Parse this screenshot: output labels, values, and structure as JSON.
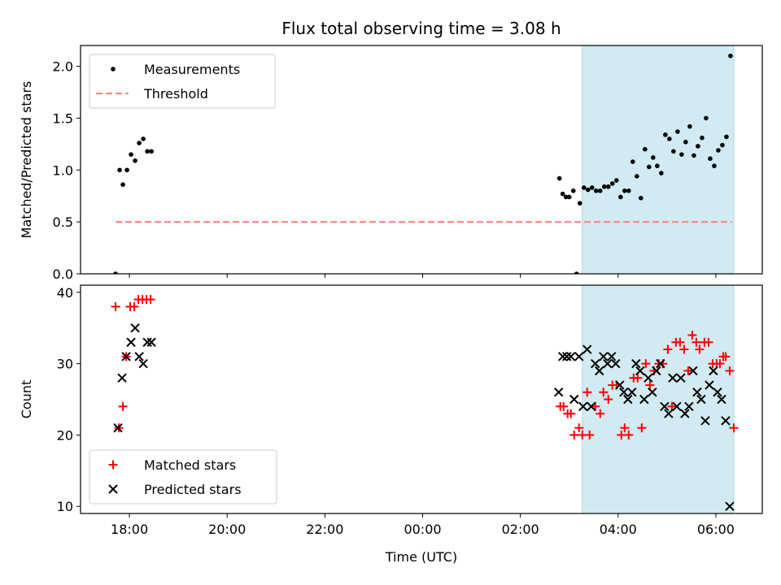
{
  "title": "Flux total observing time = 3.08 h",
  "colors": {
    "shade": "#add8e6",
    "measurement": "#000000",
    "threshold": "#ff7f7f",
    "matched": "#ff0000",
    "predicted": "#000000"
  },
  "chart_data": [
    {
      "type": "scatter",
      "panel": "top",
      "xlabel": "",
      "ylabel": "Matched/Predicted stars",
      "ylim": [
        0,
        2.2
      ],
      "yticks": [
        "0.0",
        "0.5",
        "1.0",
        "1.5",
        "2.0"
      ],
      "xlim_hours": [
        17.0,
        30.95
      ],
      "xtick_labels": [],
      "legend": {
        "placement": "upper-left",
        "entries": [
          {
            "label": "Measurements",
            "marker": "dot"
          },
          {
            "label": "Threshold",
            "marker": "dashed-line"
          }
        ]
      },
      "shaded_span": [
        "03:16",
        "06:22"
      ],
      "threshold": {
        "y": 0.5,
        "from": "17:43",
        "to": "06:20"
      },
      "series": [
        {
          "name": "Measurements",
          "marker": "dot",
          "points": [
            [
              "17:43",
              0.0
            ],
            [
              "17:48",
              1.0
            ],
            [
              "17:52",
              0.86
            ],
            [
              "17:57",
              1.0
            ],
            [
              "18:02",
              1.15
            ],
            [
              "18:07",
              1.09
            ],
            [
              "18:12",
              1.26
            ],
            [
              "18:17",
              1.3
            ],
            [
              "18:22",
              1.18
            ],
            [
              "18:27",
              1.18
            ],
            [
              "02:48",
              0.92
            ],
            [
              "02:52",
              0.77
            ],
            [
              "02:56",
              0.74
            ],
            [
              "03:00",
              0.74
            ],
            [
              "03:05",
              0.8
            ],
            [
              "03:09",
              0.0
            ],
            [
              "03:13",
              0.68
            ],
            [
              "03:18",
              0.83
            ],
            [
              "03:23",
              0.81
            ],
            [
              "03:28",
              0.83
            ],
            [
              "03:33",
              0.8
            ],
            [
              "03:38",
              0.8
            ],
            [
              "03:43",
              0.84
            ],
            [
              "03:48",
              0.84
            ],
            [
              "03:53",
              0.87
            ],
            [
              "03:58",
              0.9
            ],
            [
              "04:03",
              0.74
            ],
            [
              "04:08",
              0.8
            ],
            [
              "04:13",
              0.8
            ],
            [
              "04:18",
              1.08
            ],
            [
              "04:23",
              0.94
            ],
            [
              "04:28",
              0.73
            ],
            [
              "04:33",
              1.2
            ],
            [
              "04:38",
              1.03
            ],
            [
              "04:43",
              1.12
            ],
            [
              "04:48",
              1.04
            ],
            [
              "04:53",
              0.97
            ],
            [
              "04:58",
              1.34
            ],
            [
              "05:03",
              1.3
            ],
            [
              "05:08",
              1.18
            ],
            [
              "05:13",
              1.37
            ],
            [
              "05:18",
              1.15
            ],
            [
              "05:23",
              1.27
            ],
            [
              "05:28",
              1.42
            ],
            [
              "05:33",
              1.14
            ],
            [
              "05:38",
              1.23
            ],
            [
              "05:43",
              1.31
            ],
            [
              "05:48",
              1.5
            ],
            [
              "05:53",
              1.11
            ],
            [
              "05:58",
              1.04
            ],
            [
              "06:03",
              1.19
            ],
            [
              "06:08",
              1.24
            ],
            [
              "06:13",
              1.32
            ],
            [
              "06:18",
              2.1
            ]
          ]
        }
      ]
    },
    {
      "type": "scatter",
      "panel": "bottom",
      "xlabel": "Time (UTC)",
      "ylabel": "Count",
      "ylim": [
        9,
        41
      ],
      "yticks": [
        "10",
        "20",
        "30",
        "40"
      ],
      "xlim_hours": [
        17.0,
        30.95
      ],
      "xtick_labels": [
        "18:00",
        "20:00",
        "22:00",
        "00:00",
        "02:00",
        "04:00",
        "06:00"
      ],
      "legend": {
        "placement": "lower-left",
        "entries": [
          {
            "label": "Matched stars",
            "marker": "plus"
          },
          {
            "label": "Predicted stars",
            "marker": "x"
          }
        ]
      },
      "shaded_span": [
        "03:16",
        "06:22"
      ],
      "series": [
        {
          "name": "Matched stars",
          "marker": "plus",
          "points": [
            [
              "17:43",
              38
            ],
            [
              "17:47",
              21
            ],
            [
              "17:52",
              24
            ],
            [
              "17:56",
              31
            ],
            [
              "18:01",
              38
            ],
            [
              "18:06",
              38
            ],
            [
              "18:11",
              39
            ],
            [
              "18:16",
              39
            ],
            [
              "18:21",
              39
            ],
            [
              "18:26",
              39
            ],
            [
              "02:49",
              24
            ],
            [
              "02:53",
              24
            ],
            [
              "02:58",
              23
            ],
            [
              "03:02",
              23
            ],
            [
              "03:06",
              20
            ],
            [
              "03:12",
              21
            ],
            [
              "03:16",
              20
            ],
            [
              "03:22",
              26
            ],
            [
              "03:25",
              20
            ],
            [
              "03:32",
              24
            ],
            [
              "03:38",
              23
            ],
            [
              "03:42",
              26
            ],
            [
              "03:48",
              25
            ],
            [
              "03:53",
              27
            ],
            [
              "03:58",
              27
            ],
            [
              "04:04",
              20
            ],
            [
              "04:08",
              21
            ],
            [
              "04:13",
              20
            ],
            [
              "04:19",
              28
            ],
            [
              "04:24",
              28
            ],
            [
              "04:29",
              21
            ],
            [
              "04:34",
              30
            ],
            [
              "04:39",
              27
            ],
            [
              "04:44",
              29
            ],
            [
              "04:50",
              30
            ],
            [
              "04:55",
              30
            ],
            [
              "05:01",
              32
            ],
            [
              "05:06",
              24
            ],
            [
              "05:11",
              33
            ],
            [
              "05:16",
              33
            ],
            [
              "05:21",
              32
            ],
            [
              "05:26",
              29
            ],
            [
              "05:31",
              34
            ],
            [
              "05:36",
              33
            ],
            [
              "05:40",
              32
            ],
            [
              "05:46",
              33
            ],
            [
              "05:51",
              33
            ],
            [
              "05:56",
              30
            ],
            [
              "06:01",
              30
            ],
            [
              "06:05",
              30
            ],
            [
              "06:09",
              31
            ],
            [
              "06:12",
              31
            ],
            [
              "06:17",
              29
            ],
            [
              "06:22",
              21
            ]
          ]
        },
        {
          "name": "Predicted stars",
          "marker": "x",
          "points": [
            [
              "17:46",
              21
            ],
            [
              "17:51",
              28
            ],
            [
              "17:56",
              31
            ],
            [
              "18:02",
              33
            ],
            [
              "18:07",
              35
            ],
            [
              "18:12",
              31
            ],
            [
              "18:17",
              30
            ],
            [
              "18:22",
              33
            ],
            [
              "18:27",
              33
            ],
            [
              "02:47",
              26
            ],
            [
              "02:52",
              31
            ],
            [
              "02:57",
              31
            ],
            [
              "03:02",
              31
            ],
            [
              "03:06",
              25
            ],
            [
              "03:12",
              31
            ],
            [
              "03:17",
              24
            ],
            [
              "03:22",
              32
            ],
            [
              "03:27",
              24
            ],
            [
              "03:32",
              30
            ],
            [
              "03:37",
              29
            ],
            [
              "03:42",
              31
            ],
            [
              "03:47",
              30
            ],
            [
              "03:52",
              31
            ],
            [
              "03:57",
              30
            ],
            [
              "04:02",
              27
            ],
            [
              "04:07",
              26
            ],
            [
              "04:12",
              25
            ],
            [
              "04:17",
              26
            ],
            [
              "04:22",
              30
            ],
            [
              "04:27",
              29
            ],
            [
              "04:32",
              25
            ],
            [
              "04:37",
              28
            ],
            [
              "04:42",
              26
            ],
            [
              "04:47",
              29
            ],
            [
              "04:52",
              30
            ],
            [
              "04:57",
              24
            ],
            [
              "05:02",
              23
            ],
            [
              "05:07",
              28
            ],
            [
              "05:12",
              24
            ],
            [
              "05:17",
              28
            ],
            [
              "05:22",
              23
            ],
            [
              "05:27",
              24
            ],
            [
              "05:32",
              29
            ],
            [
              "05:37",
              26
            ],
            [
              "05:42",
              25
            ],
            [
              "05:47",
              22
            ],
            [
              "05:52",
              27
            ],
            [
              "05:57",
              29
            ],
            [
              "06:02",
              26
            ],
            [
              "06:07",
              25
            ],
            [
              "06:12",
              22
            ],
            [
              "06:17",
              10
            ]
          ]
        }
      ]
    }
  ]
}
